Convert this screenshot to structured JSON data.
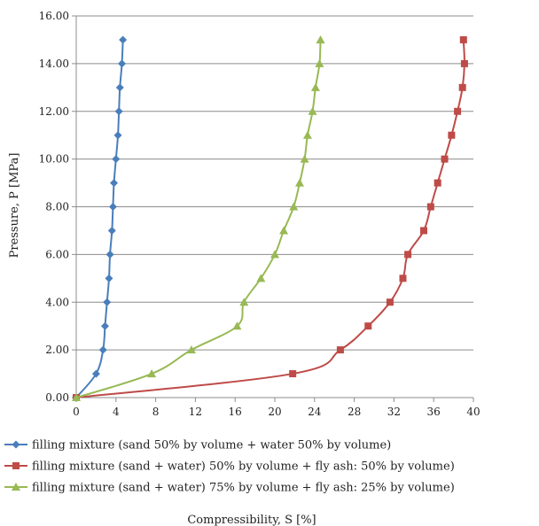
{
  "chart_data": {
    "type": "line",
    "title": "",
    "xlabel": "Compressibility, S [%]",
    "ylabel": "Pressure, P [MPa]",
    "xlim": [
      0,
      40
    ],
    "ylim": [
      0,
      16
    ],
    "xticks": [
      "0",
      "4",
      "8",
      "12",
      "16",
      "20",
      "24",
      "28",
      "32",
      "36",
      "40"
    ],
    "yticks": [
      "0.00",
      "2.00",
      "4.00",
      "6.00",
      "8.00",
      "10.00",
      "12.00",
      "14.00",
      "16.00"
    ],
    "grid": "horizontal",
    "legend_position": "bottom",
    "series": [
      {
        "name": "filling mixture (sand 50% by volume + water 50% by volume)",
        "color": "#4a7ebb",
        "marker": "diamond",
        "points": [
          [
            0,
            0
          ],
          [
            2.0,
            1.0
          ],
          [
            2.7,
            2.0
          ],
          [
            2.9,
            3.0
          ],
          [
            3.1,
            4.0
          ],
          [
            3.3,
            5.0
          ],
          [
            3.4,
            6.0
          ],
          [
            3.6,
            7.0
          ],
          [
            3.7,
            8.0
          ],
          [
            3.8,
            9.0
          ],
          [
            4.0,
            10.0
          ],
          [
            4.2,
            11.0
          ],
          [
            4.3,
            12.0
          ],
          [
            4.4,
            13.0
          ],
          [
            4.6,
            14.0
          ],
          [
            4.7,
            15.0
          ]
        ]
      },
      {
        "name": "filling mixture (sand + water) 50% by volume + fly ash: 50% by volume)",
        "color": "#be4b48",
        "marker": "square",
        "points": [
          [
            0,
            0
          ],
          [
            21.8,
            1.0
          ],
          [
            26.6,
            2.0
          ],
          [
            29.4,
            3.0
          ],
          [
            31.6,
            4.0
          ],
          [
            32.9,
            5.0
          ],
          [
            33.4,
            6.0
          ],
          [
            35.0,
            7.0
          ],
          [
            35.7,
            8.0
          ],
          [
            36.4,
            9.0
          ],
          [
            37.1,
            10.0
          ],
          [
            37.8,
            11.0
          ],
          [
            38.4,
            12.0
          ],
          [
            38.9,
            13.0
          ],
          [
            39.1,
            14.0
          ],
          [
            39.0,
            15.0
          ]
        ]
      },
      {
        "name": "filling mixture (sand + water) 75% by volume + fly ash: 25% by volume)",
        "color": "#98b954",
        "marker": "triangle",
        "points": [
          [
            0,
            0
          ],
          [
            7.6,
            1.0
          ],
          [
            11.6,
            2.0
          ],
          [
            16.2,
            3.0
          ],
          [
            16.9,
            4.0
          ],
          [
            18.6,
            5.0
          ],
          [
            20.0,
            6.0
          ],
          [
            20.9,
            7.0
          ],
          [
            21.9,
            8.0
          ],
          [
            22.5,
            9.0
          ],
          [
            23.0,
            10.0
          ],
          [
            23.3,
            11.0
          ],
          [
            23.8,
            12.0
          ],
          [
            24.1,
            13.0
          ],
          [
            24.5,
            14.0
          ],
          [
            24.6,
            15.0
          ]
        ]
      }
    ]
  }
}
